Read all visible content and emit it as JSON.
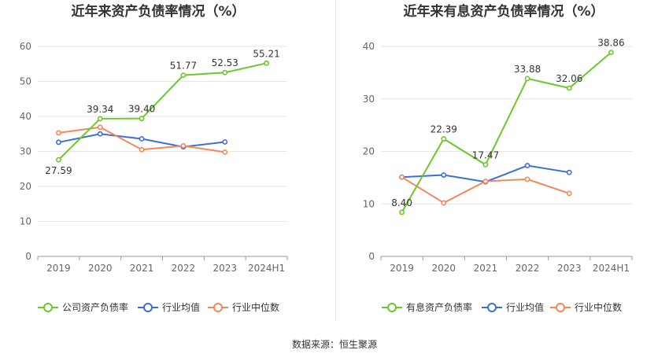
{
  "footer": {
    "source": "数据来源：恒生聚源"
  },
  "colors": {
    "company": "#6cc72e",
    "avg": "#3b6fd6",
    "median": "#f0885a"
  },
  "chart_data": [
    {
      "type": "line",
      "title": "近年来资产负债率情况（%）",
      "categories": [
        "2019",
        "2020",
        "2021",
        "2022",
        "2023",
        "2024H1"
      ],
      "yticks": [
        0,
        10,
        20,
        30,
        40,
        50,
        60
      ],
      "ylim": [
        0,
        60
      ],
      "grid": true,
      "legend_position": "bottom",
      "series": [
        {
          "name": "公司资产负债率",
          "key": "company",
          "values": [
            27.59,
            39.34,
            39.4,
            51.77,
            52.53,
            55.21
          ],
          "labels": [
            "27.59",
            "39.34",
            "39.40",
            "51.77",
            "52.53",
            "55.21"
          ]
        },
        {
          "name": "行业均值",
          "key": "avg",
          "values": [
            32.6,
            35.0,
            33.6,
            31.3,
            32.7,
            null
          ]
        },
        {
          "name": "行业中位数",
          "key": "median",
          "values": [
            35.3,
            36.9,
            30.5,
            31.6,
            29.8,
            null
          ]
        }
      ]
    },
    {
      "type": "line",
      "title": "近年来有息资产负债率情况（%）",
      "categories": [
        "2019",
        "2020",
        "2021",
        "2022",
        "2023",
        "2024H1"
      ],
      "yticks": [
        0,
        10,
        20,
        30,
        40
      ],
      "ylim": [
        0,
        40
      ],
      "grid": true,
      "legend_position": "bottom",
      "series": [
        {
          "name": "有息资产负债率",
          "key": "company",
          "values": [
            8.4,
            22.39,
            17.47,
            33.88,
            32.06,
            38.86
          ],
          "labels": [
            "8.40",
            "22.39",
            "17.47",
            "33.88",
            "32.06",
            "38.86"
          ]
        },
        {
          "name": "行业均值",
          "key": "avg",
          "values": [
            15.1,
            15.5,
            14.2,
            17.3,
            16.0,
            null
          ]
        },
        {
          "name": "行业中位数",
          "key": "median",
          "values": [
            15.1,
            10.2,
            14.3,
            14.7,
            12.0,
            null
          ]
        }
      ]
    }
  ]
}
